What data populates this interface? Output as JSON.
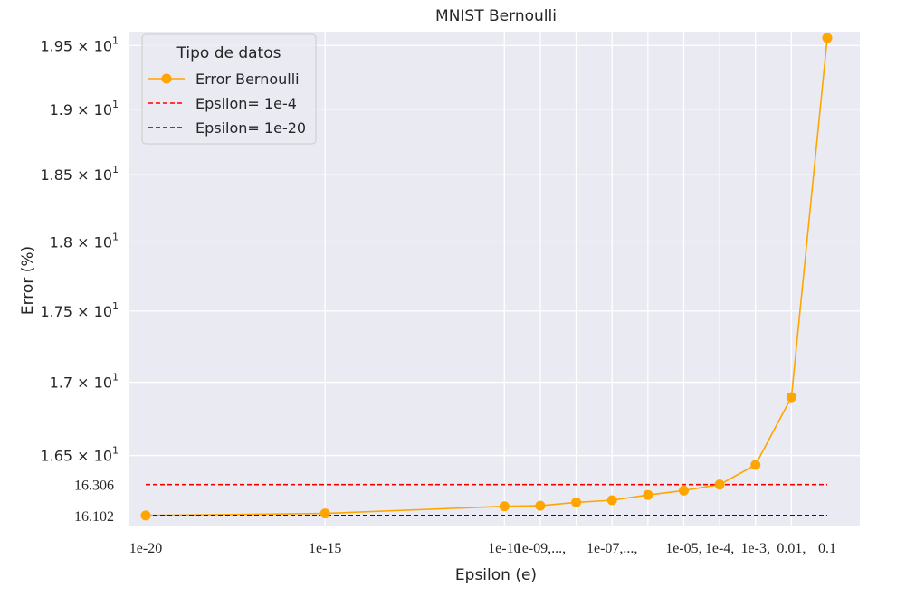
{
  "chart_data": {
    "type": "line",
    "title": "MNIST Bernoulli",
    "xlabel": "Epsilon (e)",
    "ylabel": "Error (%)",
    "x_scale": "log",
    "y_scale": "log",
    "xlim": [
      1e-20,
      0.1
    ],
    "ylim": [
      16.03,
      19.61
    ],
    "grid": true,
    "legend": {
      "title": "Tipo de datos",
      "placement": "upper-left",
      "entries": [
        "Error Bernoulli",
        "Epsilon= 1e-4",
        "Epsilon= 1e-20"
      ]
    },
    "x_ticks": [
      {
        "value": 1e-20,
        "label": "1e-20"
      },
      {
        "value": 1e-15,
        "label": "1e-15"
      },
      {
        "value": 1e-10,
        "label": "1e-10"
      },
      {
        "value": 1e-09,
        "label": "1e-09,...,"
      },
      {
        "value": 1e-07,
        "label": "1e-07,...,"
      },
      {
        "value": 1e-05,
        "label": "1e-05,"
      },
      {
        "value": 0.0001,
        "label": "1e-4,"
      },
      {
        "value": 0.001,
        "label": "1e-3,"
      },
      {
        "value": 0.01,
        "label": "0.01,"
      },
      {
        "value": 0.1,
        "label": "0.1"
      }
    ],
    "x_gridlines": [
      1e-15,
      1e-10,
      1e-09,
      1e-08,
      1e-07,
      1e-06,
      1e-05,
      0.0001,
      0.001,
      0.01
    ],
    "y_ticks": [
      {
        "value": 16.5,
        "label": "1.65 × 10",
        "exp": "1"
      },
      {
        "value": 17.0,
        "label": "1.7 × 10",
        "exp": "1"
      },
      {
        "value": 17.5,
        "label": "1.75 × 10",
        "exp": "1"
      },
      {
        "value": 18.0,
        "label": "1.8 × 10",
        "exp": "1"
      },
      {
        "value": 18.5,
        "label": "1.85 × 10",
        "exp": "1"
      },
      {
        "value": 19.0,
        "label": "1.9 × 10",
        "exp": "1"
      },
      {
        "value": 19.5,
        "label": "1.95 × 10",
        "exp": "1"
      }
    ],
    "y_extra_labels": [
      {
        "value": 16.306,
        "label": "16.306"
      },
      {
        "value": 16.102,
        "label": "16.102"
      }
    ],
    "series": [
      {
        "name": "Error Bernoulli",
        "color": "#ffa500",
        "style": "line-marker",
        "x": [
          1e-20,
          1e-15,
          1e-10,
          1e-09,
          1e-08,
          1e-07,
          1e-06,
          1e-05,
          0.0001,
          0.001,
          0.01,
          0.1
        ],
        "y": [
          16.102,
          16.115,
          16.162,
          16.166,
          16.188,
          16.202,
          16.237,
          16.266,
          16.306,
          16.437,
          16.897,
          19.56
        ]
      },
      {
        "name": "Epsilon= 1e-4",
        "color": "#ff0000",
        "style": "dashed",
        "x": [
          1e-20,
          0.1
        ],
        "y": [
          16.306,
          16.306
        ]
      },
      {
        "name": "Epsilon= 1e-20",
        "color": "#0000ff",
        "style": "dashed",
        "x": [
          1e-20,
          0.1
        ],
        "y": [
          16.102,
          16.102
        ]
      }
    ]
  },
  "colors": {
    "plot_background": "#eaeaf2",
    "grid": "#ffffff",
    "text": "#262626"
  }
}
